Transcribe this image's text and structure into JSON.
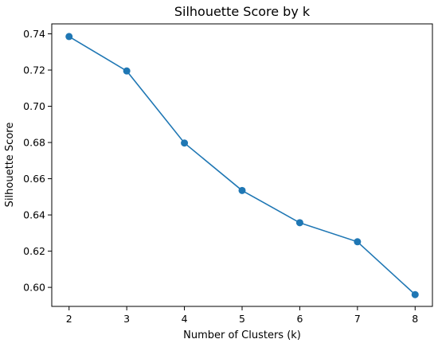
{
  "chart_data": {
    "type": "line",
    "title": "Silhouette Score by k",
    "xlabel": "Number of Clusters (k)",
    "ylabel": "Silhouette Score",
    "x": [
      2,
      3,
      4,
      5,
      6,
      7,
      8
    ],
    "series": [
      {
        "values": [
          0.7385,
          0.7195,
          0.6797,
          0.6535,
          0.6357,
          0.6252,
          0.596
        ]
      }
    ],
    "xlim": [
      1.7,
      8.3
    ],
    "ylim": [
      0.5895,
      0.7455
    ],
    "xticks": [
      2,
      3,
      4,
      5,
      6,
      7,
      8
    ],
    "xtick_labels": [
      "2",
      "3",
      "4",
      "5",
      "6",
      "7",
      "8"
    ],
    "yticks": [
      0.6,
      0.62,
      0.64,
      0.66,
      0.68,
      0.7,
      0.72,
      0.74
    ],
    "ytick_labels": [
      "0.60",
      "0.62",
      "0.64",
      "0.66",
      "0.68",
      "0.70",
      "0.72",
      "0.74"
    ],
    "grid": false,
    "marker": "circle",
    "line_color": "#1f77b4"
  }
}
